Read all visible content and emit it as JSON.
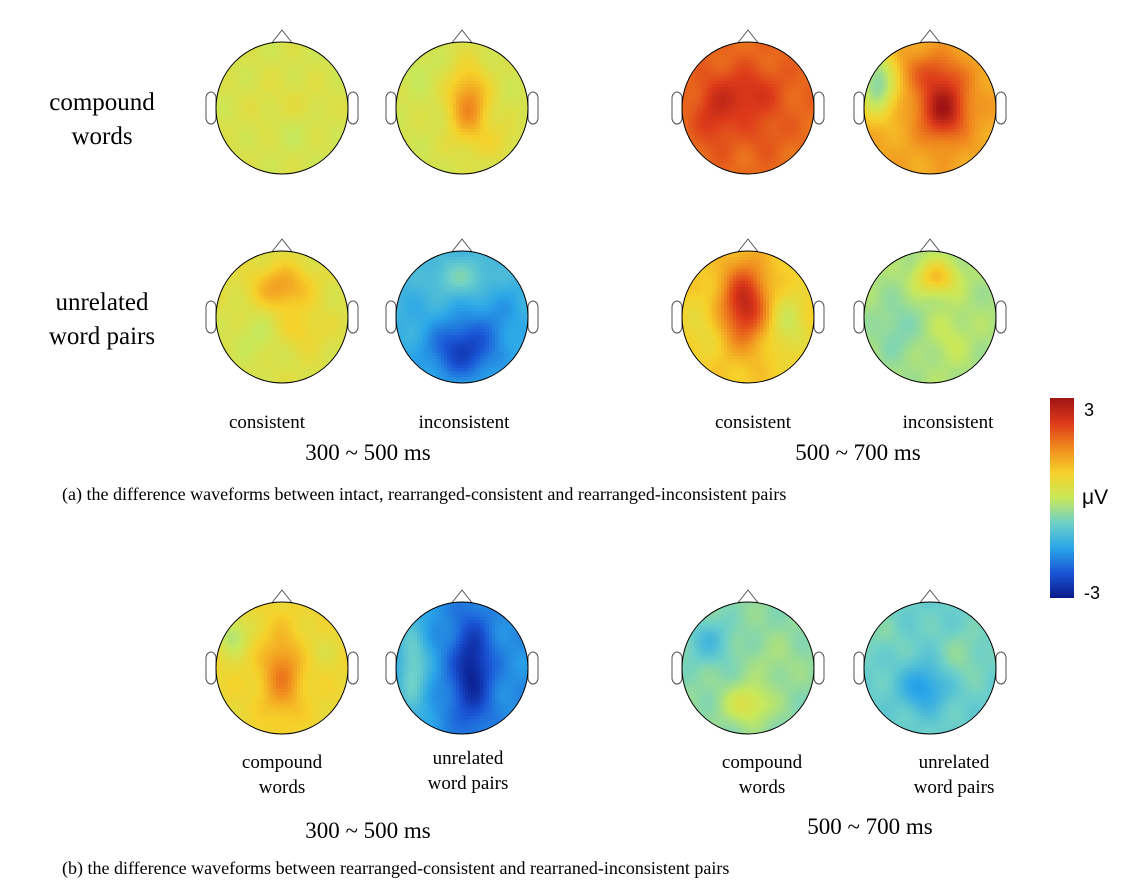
{
  "panel_a": {
    "row_labels": {
      "compound": [
        "compound",
        "words"
      ],
      "unrelated": [
        "unrelated",
        "word pairs"
      ]
    },
    "column_labels": {
      "left_1": "consistent",
      "left_2": "inconsistent",
      "right_1": "consistent",
      "right_2": "inconsistent"
    },
    "time_windows": {
      "left": "300 ~ 500 ms",
      "right": "500 ~ 700 ms"
    },
    "caption": "(a) the difference waveforms between intact, rearranged-consistent and rearranged-inconsistent pairs"
  },
  "panel_b": {
    "column_labels": {
      "left_1": [
        "compound",
        "words"
      ],
      "left_2": [
        "unrelated",
        "word pairs"
      ],
      "right_1": [
        "compound",
        "words"
      ],
      "right_2": [
        "unrelated",
        "word pairs"
      ]
    },
    "time_windows": {
      "left": "300 ~ 500 ms",
      "right": "500 ~ 700 ms"
    },
    "caption": "(b) the difference  waveforms between rearranged-consistent and rearraned-inconsistent pairs"
  },
  "colorbar": {
    "max_label": "3",
    "min_label": "-3",
    "unit": "μV",
    "range": [
      -3,
      3
    ]
  },
  "colors": {
    "scale": [
      "#0a1a8c",
      "#1a55d6",
      "#2aa6e8",
      "#6ed0c8",
      "#c8e85a",
      "#f6d12a",
      "#f08a1e",
      "#dd3a1a",
      "#a01414"
    ],
    "outline": "#000000",
    "head_outline": "#555555"
  },
  "topomaps": [
    {
      "id": "a-compound-consistent-300-500",
      "base": 0.2,
      "blobs": [
        [
          0.0,
          0.0,
          0.45,
          0.55,
          0.15
        ],
        [
          0.1,
          0.35,
          0.35,
          0.3,
          -0.2
        ],
        [
          -0.35,
          0.1,
          0.4,
          0.5,
          0.05
        ],
        [
          0.5,
          -0.1,
          0.3,
          0.3,
          0.1
        ]
      ]
    },
    {
      "id": "a-compound-inconsistent-300-500",
      "base": 0.2,
      "blobs": [
        [
          0.1,
          -0.05,
          0.3,
          0.55,
          1.3
        ],
        [
          -0.7,
          -0.6,
          0.3,
          0.3,
          -0.2
        ],
        [
          0.55,
          0.5,
          0.3,
          0.3,
          0.3
        ]
      ]
    },
    {
      "id": "a-compound-consistent-500-700",
      "base": 1.8,
      "blobs": [
        [
          0.0,
          -0.2,
          0.5,
          0.4,
          0.6
        ],
        [
          -0.5,
          0.1,
          0.3,
          0.5,
          0.5
        ],
        [
          0.2,
          0.4,
          0.3,
          0.3,
          0.2
        ]
      ]
    },
    {
      "id": "a-compound-inconsistent-500-700",
      "base": 1.2,
      "blobs": [
        [
          0.2,
          0.0,
          0.35,
          0.45,
          1.7
        ],
        [
          -0.8,
          -0.4,
          0.3,
          0.5,
          -1.8
        ],
        [
          0.0,
          -0.55,
          0.5,
          0.3,
          0.6
        ]
      ]
    },
    {
      "id": "a-unrelated-consistent-300-500",
      "base": 0.3,
      "blobs": [
        [
          0.0,
          -0.45,
          0.45,
          0.35,
          1.0
        ],
        [
          0.3,
          0.2,
          0.35,
          0.3,
          0.4
        ],
        [
          -0.4,
          0.3,
          0.35,
          0.4,
          -0.3
        ]
      ]
    },
    {
      "id": "a-unrelated-inconsistent-300-500",
      "base": -1.3,
      "blobs": [
        [
          0.0,
          0.5,
          0.5,
          0.45,
          -1.2
        ],
        [
          0.0,
          -0.6,
          0.5,
          0.3,
          0.6
        ],
        [
          0.5,
          0.0,
          0.4,
          0.5,
          -0.3
        ]
      ]
    },
    {
      "id": "a-unrelated-consistent-500-700",
      "base": 0.8,
      "blobs": [
        [
          -0.05,
          -0.2,
          0.35,
          0.6,
          1.8
        ],
        [
          0.6,
          0.1,
          0.3,
          0.5,
          -0.7
        ],
        [
          -0.7,
          0.2,
          0.3,
          0.5,
          -0.3
        ]
      ]
    },
    {
      "id": "a-unrelated-inconsistent-500-700",
      "base": -0.25,
      "blobs": [
        [
          0.1,
          -0.6,
          0.3,
          0.25,
          1.2
        ],
        [
          -0.5,
          0.2,
          0.35,
          0.5,
          -0.35
        ],
        [
          0.3,
          0.3,
          0.3,
          0.4,
          0.25
        ]
      ]
    },
    {
      "id": "b-compound-300-500",
      "base": 0.6,
      "blobs": [
        [
          0.0,
          0.1,
          0.3,
          0.6,
          1.0
        ],
        [
          -0.75,
          -0.5,
          0.25,
          0.3,
          -0.8
        ],
        [
          0.6,
          -0.3,
          0.3,
          0.3,
          -0.2
        ]
      ]
    },
    {
      "id": "b-unrelated-300-500",
      "base": -1.7,
      "blobs": [
        [
          0.15,
          0.05,
          0.3,
          0.8,
          -1.2
        ],
        [
          -0.75,
          0.0,
          0.25,
          0.8,
          1.0
        ]
      ]
    },
    {
      "id": "b-compound-500-700",
      "base": -0.5,
      "blobs": [
        [
          -0.6,
          -0.4,
          0.35,
          0.35,
          -0.6
        ],
        [
          0.0,
          0.55,
          0.35,
          0.3,
          0.8
        ],
        [
          0.4,
          -0.1,
          0.4,
          0.4,
          0.2
        ]
      ]
    },
    {
      "id": "b-unrelated-500-700",
      "base": -0.8,
      "blobs": [
        [
          -0.1,
          0.3,
          0.35,
          0.35,
          -0.8
        ],
        [
          0.5,
          -0.2,
          0.35,
          0.4,
          0.3
        ],
        [
          -0.7,
          -0.5,
          0.3,
          0.3,
          0.2
        ]
      ]
    }
  ]
}
